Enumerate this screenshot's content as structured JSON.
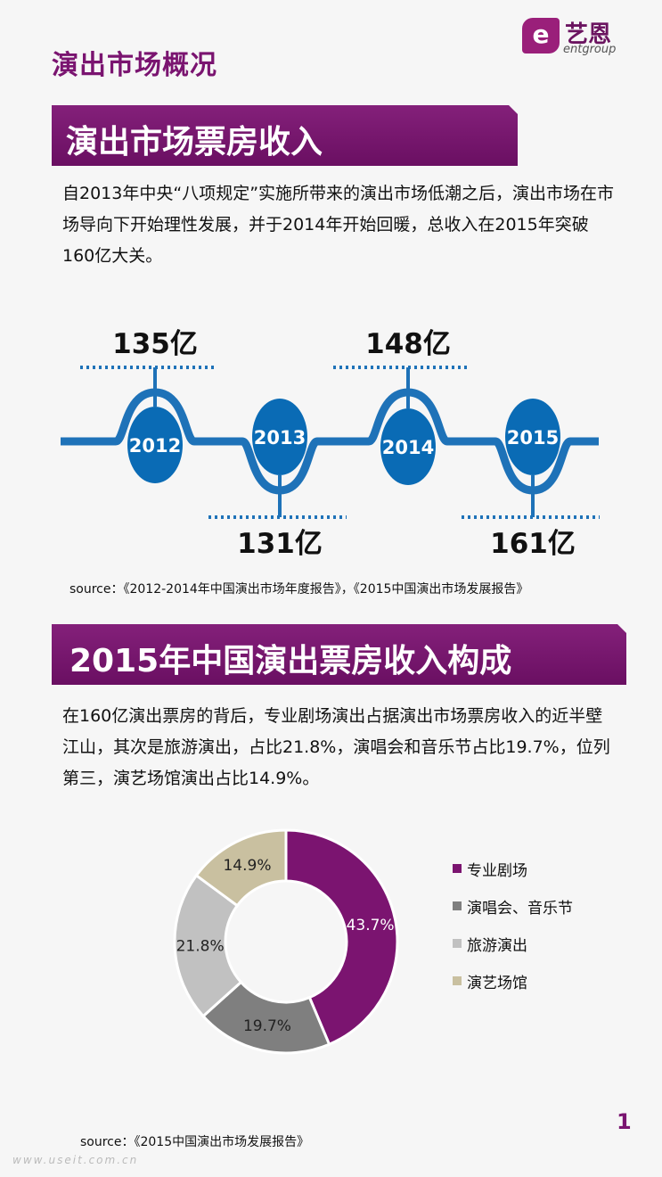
{
  "header": {
    "title": "演出市场概况",
    "logo": {
      "mark": "e",
      "name_cn": "艺恩",
      "name_en": "entgroup"
    }
  },
  "section1": {
    "banner": "演出市场票房收入",
    "text": "自2013年中央“八项规定”实施所带来的演出市场低潮之后，演出市场在市场导向下开始理性发展，并于2014年开始回暖，总收入在2015年突破160亿大关。",
    "source": "source：《2012-2014年中国演出市场年度报告》，《2015中国演出市场发展报告》"
  },
  "section2": {
    "banner": "2015年中国演出票房收入构成",
    "text": "在160亿演出票房的背后，专业剧场演出占据演出市场票房收入的近半壁江山，其次是旅游演出，占比21.8%，演唱会和音乐节占比19.7%，位列第三，演艺场馆演出占比14.9%。",
    "source": "source：《2015中国演出市场发展报告》"
  },
  "chart_data": [
    {
      "type": "line",
      "x": [
        "2012",
        "2013",
        "2014",
        "2015"
      ],
      "values": [
        135,
        131,
        148,
        161
      ],
      "value_labels": [
        "135亿",
        "131亿",
        "148亿",
        "161亿"
      ],
      "colors": {
        "line": "#1e72b8",
        "node": "#0a6bb5",
        "dots": "#1e72b8"
      }
    },
    {
      "type": "pie",
      "categories": [
        "专业剧场",
        "演唱会、音乐节",
        "旅游演出",
        "演艺场馆"
      ],
      "values": [
        43.7,
        19.7,
        21.8,
        14.9
      ],
      "labels": [
        "43.7%",
        "19.7%",
        "21.8%",
        "14.9%"
      ],
      "colors": [
        "#7b1470",
        "#7f7f7f",
        "#c1c1c1",
        "#c9c0a0"
      ],
      "label_colors": [
        "#ffffff",
        "#222222",
        "#222222",
        "#222222"
      ],
      "legend_position": "right"
    }
  ],
  "footer": {
    "page_number": "1",
    "watermark": "www.useit.com.cn"
  }
}
